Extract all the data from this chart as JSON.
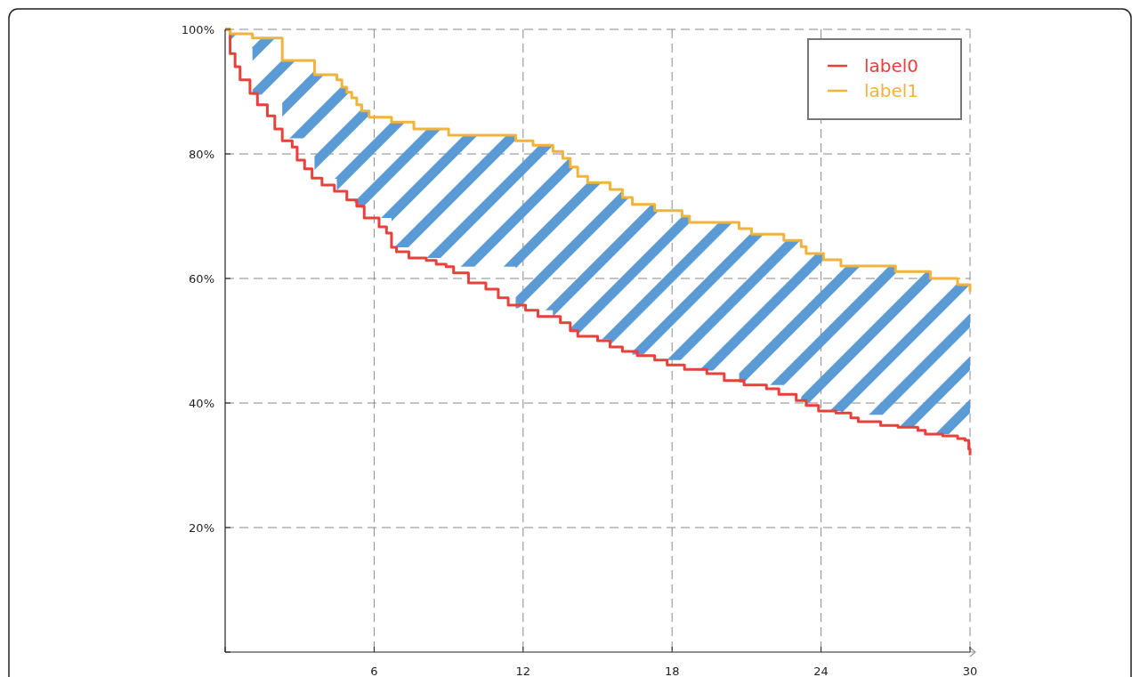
{
  "chart_data": {
    "type": "step",
    "xlim": [
      0,
      30
    ],
    "xticks": [
      {
        "value": 0,
        "label": null
      },
      6,
      12,
      18,
      24,
      30
    ],
    "ylim": [
      0,
      100
    ],
    "yticks": [
      {
        "value": 0,
        "label": null
      },
      {
        "value": 20,
        "label": "20%"
      },
      {
        "value": 40,
        "label": "40%"
      },
      {
        "value": 60,
        "label": "60%"
      },
      {
        "value": 80,
        "label": "80%"
      },
      {
        "value": 100,
        "label": "100%"
      }
    ],
    "grid": true,
    "legend": "top right",
    "line_style": "solid",
    "marker": "none",
    "series": [
      {
        "name": "label0",
        "color": "#e8403a",
        "x": [
          0,
          0.2,
          0.4,
          0.6,
          1.0,
          1.3,
          1.7,
          2.0,
          2.3,
          2.7,
          2.9,
          3.2,
          3.5,
          3.9,
          4.4,
          4.9,
          5.3,
          5.6,
          6.2,
          6.5,
          6.7,
          6.9,
          7.4,
          8.1,
          8.5,
          8.9,
          9.2,
          9.8,
          10.5,
          11.0,
          11.4,
          12.1,
          12.6,
          13.5,
          13.9,
          14.2,
          15.0,
          15.5,
          16.0,
          16.6,
          17.3,
          17.8,
          18.5,
          19.4,
          20.1,
          20.9,
          21.8,
          22.3,
          23.0,
          23.4,
          23.9,
          24.6,
          25.2,
          25.5,
          26.4,
          27.1,
          27.9,
          28.2,
          28.9,
          29.5,
          29.8,
          29.95,
          30
        ],
        "values": [
          100,
          96.1,
          94,
          91.9,
          89.7,
          87.9,
          86.1,
          84,
          82.1,
          81.1,
          79,
          77.6,
          76.1,
          75,
          74,
          72.6,
          71.6,
          69.7,
          68.3,
          67.3,
          65,
          64.3,
          63.3,
          62.9,
          62.3,
          61.9,
          60.9,
          59.3,
          58.3,
          56.9,
          55.7,
          54.9,
          53.9,
          52.9,
          51.6,
          50.7,
          50,
          49,
          48.3,
          47.6,
          46.9,
          46.1,
          45.4,
          44.7,
          43.6,
          42.9,
          42.3,
          41.4,
          40.4,
          39.6,
          38.7,
          38.4,
          37.6,
          37,
          36.4,
          36.1,
          35.6,
          35,
          34.7,
          34.3,
          34,
          32.6,
          31.6
        ]
      },
      {
        "name": "label1",
        "color": "#f0b43c",
        "x": [
          0,
          0.2,
          1.1,
          2.3,
          3.6,
          4.5,
          4.7,
          4.9,
          5.1,
          5.3,
          5.5,
          5.8,
          6.7,
          7.6,
          9.0,
          11.7,
          12.4,
          13.2,
          13.6,
          13.9,
          14.2,
          14.6,
          15.5,
          16.0,
          16.4,
          17.3,
          18.4,
          18.7,
          20.7,
          21.2,
          22.5,
          23.2,
          23.4,
          24.1,
          24.8,
          27.0,
          28.4,
          29.5,
          30
        ],
        "values": [
          100,
          99.3,
          98.6,
          95,
          92.7,
          91.9,
          90.7,
          89.9,
          89,
          87.9,
          86.9,
          85.9,
          85.1,
          84,
          83,
          82.1,
          81.4,
          80.4,
          79.3,
          77.9,
          76.4,
          75.4,
          74.3,
          73,
          71.9,
          70.9,
          70,
          69,
          68,
          67.1,
          66.1,
          65.1,
          64,
          63,
          62,
          61.1,
          60,
          59,
          57.9
        ],
        "lower": [
          100,
          97,
          89.5,
          82.5,
          76,
          74,
          73.6,
          72.6,
          72.2,
          71.5,
          70.5,
          69.7,
          65,
          63.3,
          61.9,
          55.2,
          54.9,
          53.3,
          52.9,
          51.6,
          50.7,
          50.2,
          49,
          48.3,
          47.8,
          46.9,
          45.4,
          45.2,
          43.3,
          42.9,
          41.3,
          40.4,
          39.6,
          38.7,
          38.1,
          36.1,
          35,
          34.3,
          31.6
        ],
        "upper": [
          100,
          99.3,
          98.6,
          95,
          92.7,
          91.9,
          90.7,
          89.9,
          89,
          87.9,
          86.9,
          85.9,
          85.1,
          84,
          83,
          82.1,
          81.4,
          80.4,
          79.3,
          77.9,
          76.4,
          75.4,
          74.3,
          73,
          71.9,
          70.9,
          70,
          69,
          68,
          67.1,
          66.1,
          65.1,
          64,
          63,
          62,
          61.1,
          60,
          59,
          57.9
        ]
      }
    ]
  }
}
